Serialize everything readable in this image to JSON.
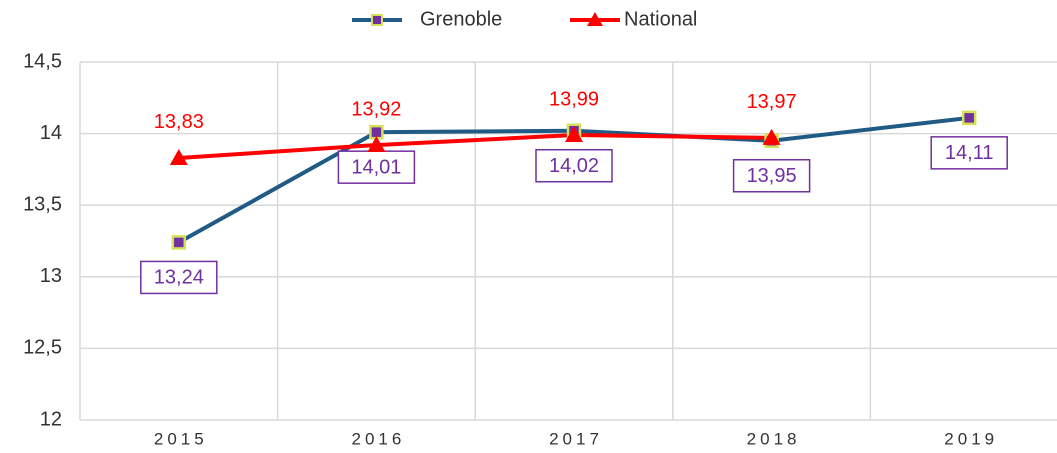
{
  "chart_data": {
    "type": "line",
    "categories": [
      "2015",
      "2016",
      "2017",
      "2018",
      "2019"
    ],
    "series": [
      {
        "name": "Grenoble",
        "color": "#1f5b85",
        "marker_fill": "#7030a0",
        "marker_edge": "#d4e157",
        "label_color": "#7030a0",
        "values": [
          13.24,
          14.01,
          14.02,
          13.95,
          14.11
        ],
        "value_labels": [
          "13,24",
          "14,01",
          "14,02",
          "13,95",
          "14,11"
        ]
      },
      {
        "name": "National",
        "color": "#ff0000",
        "values": [
          13.83,
          13.92,
          13.99,
          13.97,
          null
        ],
        "value_labels": [
          "13,83",
          "13,92",
          "13,99",
          "13,97",
          null
        ]
      }
    ],
    "ylim": [
      12,
      14.5
    ],
    "yticks": [
      12,
      {
        "value": 12.5,
        "label": "12,5"
      },
      13,
      {
        "value": 13.5,
        "label": "13,5"
      },
      14,
      {
        "value": 14.5,
        "label": "14,5"
      }
    ],
    "grid": true,
    "legend": "top"
  }
}
